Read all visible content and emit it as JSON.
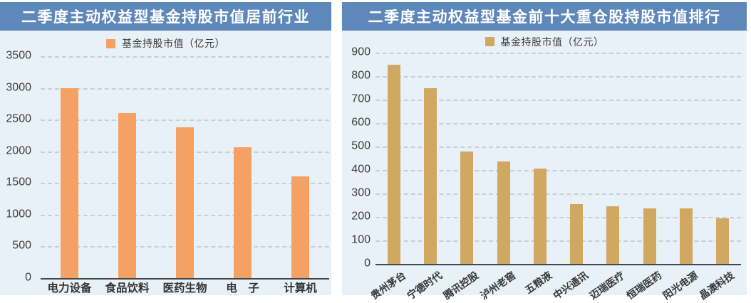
{
  "panels": [
    {
      "title": "二季度主动权益型基金持股市值居前行业",
      "legend": "基金持股市值（亿元）"
    },
    {
      "title": "二季度主动权益型基金前十大重仓股持股市值排行",
      "legend": "基金持股市值（亿元）"
    }
  ],
  "chart_data": [
    {
      "type": "bar",
      "title": "二季度主动权益型基金持股市值居前行业",
      "legend_entries": [
        "基金持股市值（亿元）"
      ],
      "legend_position": "top",
      "categories": [
        "电力设备",
        "食品饮料",
        "医药生物",
        "电　子",
        "计算机"
      ],
      "values": [
        3000,
        2600,
        2380,
        2060,
        1600
      ],
      "ylabel": "基金持股市值（亿元）",
      "xlabel": "",
      "ylim": [
        0,
        3500
      ],
      "ytick_step": 500,
      "yticks": [
        0,
        500,
        1000,
        1500,
        2000,
        2500,
        3000,
        3500
      ],
      "grid": true,
      "bar_color": "#F6A164"
    },
    {
      "type": "bar",
      "title": "二季度主动权益型基金前十大重仓股持股市值排行",
      "legend_entries": [
        "基金持股市值（亿元）"
      ],
      "legend_position": "top",
      "categories": [
        "贵州茅台",
        "宁德时代",
        "腾讯控股",
        "泸州老窖",
        "五粮液",
        "中兴通讯",
        "迈瑞医疗",
        "恒瑞医药",
        "阳光电源",
        "晶澳科技"
      ],
      "values": [
        850,
        750,
        480,
        435,
        405,
        255,
        245,
        235,
        235,
        195
      ],
      "ylabel": "基金持股市值（亿元）",
      "xlabel": "",
      "ylim": [
        0,
        900
      ],
      "ytick_step": 100,
      "yticks": [
        0,
        100,
        200,
        300,
        400,
        500,
        600,
        700,
        800,
        900
      ],
      "grid": true,
      "bar_color": "#D0A862",
      "xlabel_rotation_deg": -35
    }
  ],
  "colors": {
    "header_blue": "#5E88BA",
    "panel_background": "#E9F1F8",
    "page_background": "#FFFFFF",
    "bar_orange": "#F6A164",
    "bar_tan": "#D0A862",
    "gridline": "#C8CED5",
    "axis_line": "#43484E",
    "tick_text": "#3C3C3C",
    "title_text": "#FFFFFF"
  }
}
